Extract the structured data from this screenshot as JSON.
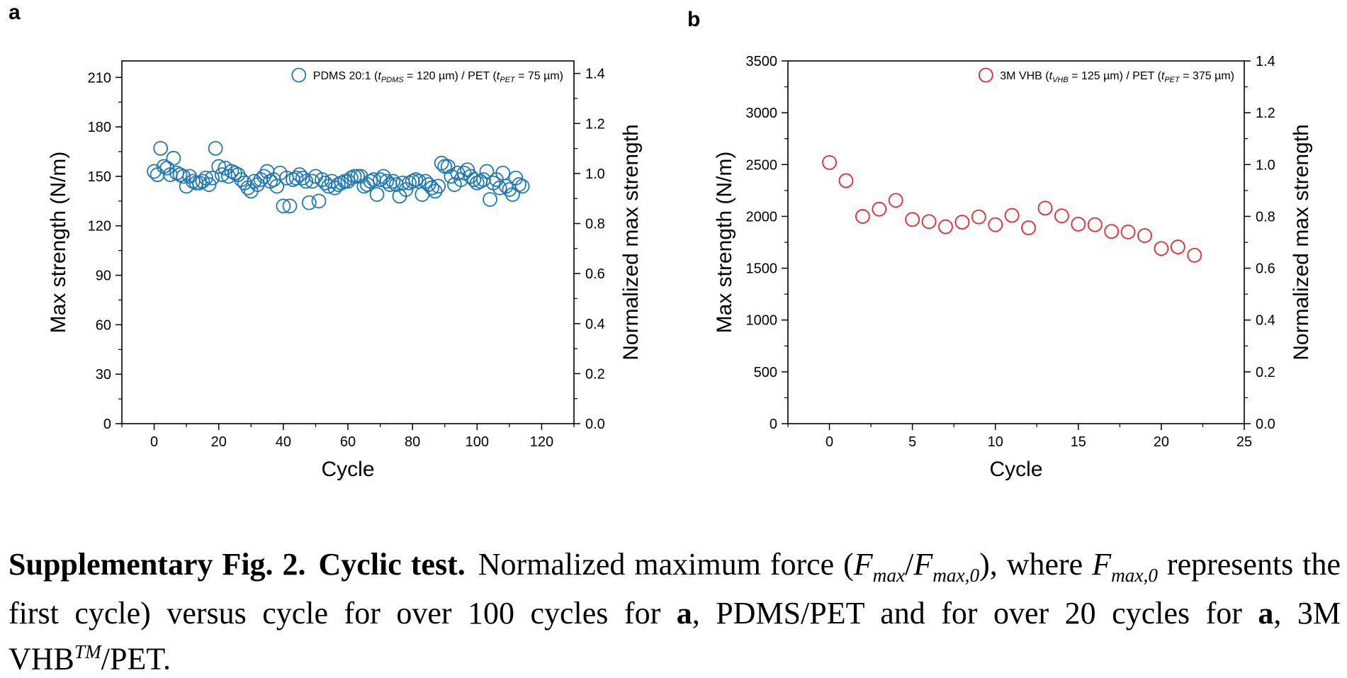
{
  "figure": {
    "panels": [
      {
        "letter": "a"
      },
      {
        "letter": "b"
      }
    ]
  },
  "caption": {
    "label": "Supplementary Fig. 2.",
    "heading": "Cyclic test.",
    "p1": "Normalized maximum force (",
    "f": "F",
    "max": "max",
    "slash": "/",
    "max0": "max,0",
    "p2": "), where ",
    "p3": "represents the first cycle) versus cycle for over 100 cycles for ",
    "bold_a1": "a",
    "p4": ", PDMS/PET and for over 20 cycles for ",
    "bold_a2": "a",
    "p5": ", 3M VHB",
    "tm": "TM",
    "p6": "/PET."
  },
  "chart_data": [
    {
      "type": "scatter",
      "panel": "a",
      "xlabel": "Cycle",
      "ylabel": "Max strength (N/m)",
      "y2label": "Normalized max strength",
      "xlim": [
        -10,
        130
      ],
      "xticks": [
        0,
        20,
        40,
        60,
        80,
        100,
        120
      ],
      "ylim": [
        0,
        220
      ],
      "yticks": [
        0,
        30,
        60,
        90,
        120,
        150,
        180,
        210
      ],
      "y2lim": [
        0,
        1.45
      ],
      "y2ticks": [
        0.0,
        0.2,
        0.4,
        0.6,
        0.8,
        1.0,
        1.2,
        1.4
      ],
      "legend": "top-right",
      "color": "#1f77b4",
      "legend_text": {
        "l1": "PDMS 20:1 (",
        "t1": "t",
        "s1": "PDMS",
        "l2": " = 120 µm) / PET (",
        "t2": "t",
        "s2": "PET",
        "l3": " = 75 µm)"
      },
      "x": [
        0,
        1,
        2,
        3,
        4,
        5,
        6,
        7,
        8,
        9,
        10,
        11,
        12,
        13,
        14,
        15,
        16,
        17,
        18,
        19,
        20,
        21,
        22,
        23,
        24,
        25,
        26,
        27,
        28,
        29,
        30,
        31,
        32,
        33,
        34,
        35,
        36,
        37,
        38,
        39,
        40,
        41,
        42,
        43,
        44,
        45,
        46,
        47,
        48,
        49,
        50,
        51,
        52,
        53,
        54,
        55,
        56,
        57,
        58,
        59,
        60,
        61,
        62,
        63,
        64,
        65,
        66,
        67,
        68,
        69,
        70,
        71,
        72,
        73,
        74,
        75,
        76,
        77,
        78,
        79,
        80,
        81,
        82,
        83,
        84,
        85,
        86,
        87,
        88,
        89,
        90,
        91,
        92,
        93,
        94,
        95,
        96,
        97,
        98,
        99,
        100,
        101,
        102,
        103,
        104,
        105,
        106,
        107,
        108,
        109,
        110,
        111,
        112,
        113,
        114
      ],
      "y": [
        153,
        151,
        167,
        156,
        155,
        151,
        161,
        152,
        151,
        150,
        144,
        150,
        147,
        146,
        146,
        147,
        149,
        145,
        149,
        167,
        156,
        151,
        155,
        150,
        153,
        152,
        151,
        148,
        146,
        143,
        141,
        147,
        145,
        148,
        150,
        153,
        147,
        148,
        144,
        152,
        132,
        149,
        132,
        148,
        149,
        151,
        149,
        147,
        134,
        147,
        150,
        135,
        148,
        146,
        144,
        147,
        143,
        145,
        146,
        147,
        147,
        149,
        150,
        150,
        150,
        144,
        145,
        147,
        148,
        139,
        148,
        150,
        147,
        145,
        147,
        145,
        138,
        146,
        142,
        146,
        147,
        148,
        147,
        139,
        147,
        145,
        143,
        141,
        144,
        158,
        156,
        156,
        150,
        145,
        152,
        148,
        152,
        154,
        150,
        148,
        146,
        147,
        148,
        153,
        136,
        146,
        148,
        143,
        152,
        144,
        142,
        139,
        149,
        145,
        144
      ]
    },
    {
      "type": "scatter",
      "panel": "b",
      "xlabel": "Cycle",
      "ylabel": "Max strength (N/m)",
      "y2label": "Normalized max strength",
      "xlim": [
        -2.5,
        25
      ],
      "xticks": [
        0,
        5,
        10,
        15,
        20,
        25
      ],
      "ylim": [
        0,
        3500
      ],
      "yticks": [
        0,
        500,
        1000,
        1500,
        2000,
        2500,
        3000,
        3500
      ],
      "y2lim": [
        0,
        1.4
      ],
      "y2ticks": [
        0.0,
        0.2,
        0.4,
        0.6,
        0.8,
        1.0,
        1.2,
        1.4
      ],
      "legend": "top-right",
      "color": "#e8262b",
      "legend_text": {
        "l1": "3M VHB (",
        "t1": "t",
        "s1": "VHB",
        "l2": " = 125 µm) / PET (",
        "t2": "t",
        "s2": "PET",
        "l3": " = 375 µm)"
      },
      "x": [
        0,
        1,
        2,
        3,
        4,
        5,
        6,
        7,
        8,
        9,
        10,
        11,
        12,
        13,
        14,
        15,
        16,
        17,
        18,
        19,
        20,
        21,
        22
      ],
      "y": [
        2520,
        2345,
        2000,
        2070,
        2155,
        1970,
        1950,
        1900,
        1945,
        1995,
        1920,
        2010,
        1890,
        2080,
        2005,
        1925,
        1920,
        1855,
        1850,
        1815,
        1690,
        1705,
        1625
      ]
    }
  ]
}
